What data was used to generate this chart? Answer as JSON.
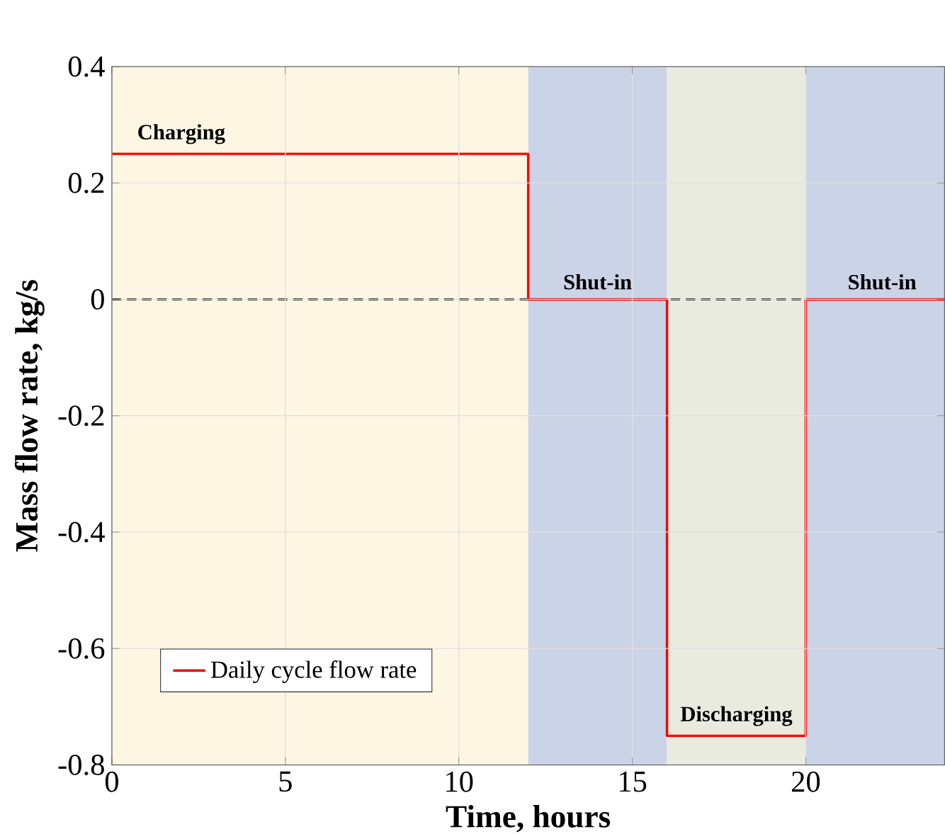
{
  "chart_data": {
    "type": "step",
    "xlabel": "Time, hours",
    "ylabel": "Mass flow rate, kg/s",
    "x": [
      0,
      12,
      16,
      20,
      24
    ],
    "series": [
      {
        "name": "Daily cycle flow rate",
        "color": "#ff0000",
        "values": [
          0.25,
          0,
          -0.75,
          0,
          0
        ]
      }
    ],
    "xlim": [
      0,
      24
    ],
    "xticks": [
      0,
      5,
      10,
      15,
      20
    ],
    "ylim": [
      -0.8,
      0.4
    ],
    "yticks": [
      -0.8,
      -0.6,
      -0.4,
      -0.2,
      0,
      0.2,
      0.4
    ],
    "grid": true,
    "legend": "bottom left",
    "bands": [
      {
        "axis": "x",
        "from": 0,
        "to": 12,
        "color": "#fdf6e3"
      },
      {
        "axis": "x",
        "from": 12,
        "to": 16,
        "color": "#cbd4e6"
      },
      {
        "axis": "x",
        "from": 16,
        "to": 20,
        "color": "#e9ebdf"
      },
      {
        "axis": "x",
        "from": 20,
        "to": 24,
        "color": "#cbd4e6"
      }
    ],
    "ref_lines": [
      {
        "axis": "y",
        "value": 0,
        "color": "#000000",
        "line_style": "dashed"
      }
    ],
    "annotations": [
      {
        "text": "Charging",
        "x": 2,
        "y": 0.25
      },
      {
        "text": "Shut-in",
        "x": 14,
        "y": 0
      },
      {
        "text": "Discharging",
        "x": 18,
        "y": -0.75
      },
      {
        "text": "Shut-in",
        "x": 22.2,
        "y": 0
      }
    ]
  }
}
